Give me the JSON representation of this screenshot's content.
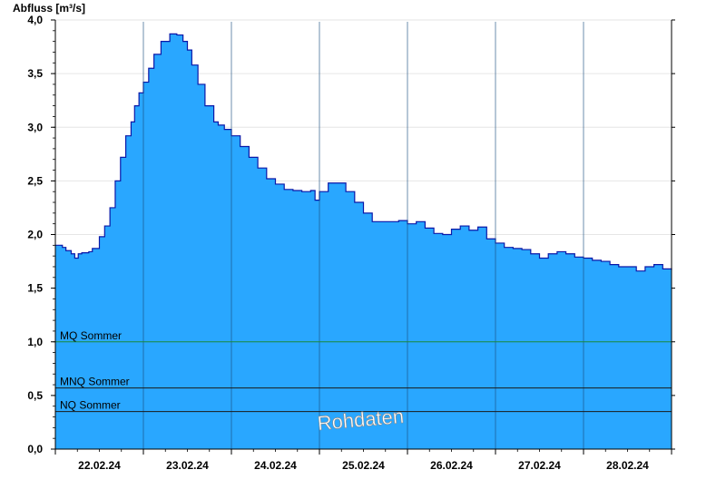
{
  "chart_data": {
    "type": "area",
    "title": "Abfluss [m³/s]",
    "xlabel": "",
    "ylabel": "Abfluss [m³/s]",
    "ylim": [
      0,
      4.0
    ],
    "yticks": [
      "0,0",
      "0,5",
      "1,0",
      "1,5",
      "2,0",
      "2,5",
      "3,0",
      "3,5",
      "4,0"
    ],
    "ytick_values": [
      0,
      0.5,
      1.0,
      1.5,
      2.0,
      2.5,
      3.0,
      3.5,
      4.0
    ],
    "x_days": [
      "22.02.24",
      "23.02.24",
      "24.02.24",
      "25.02.24",
      "26.02.24",
      "27.02.24",
      "28.02.24"
    ],
    "xlim_days": [
      0,
      7
    ],
    "series": [
      {
        "color": "#29a7ff",
        "line_color": "#0a18a8",
        "x": [
          0,
          0.08,
          0.12,
          0.18,
          0.22,
          0.26,
          0.3,
          0.38,
          0.42,
          0.5,
          0.56,
          0.62,
          0.68,
          0.74,
          0.8,
          0.86,
          0.9,
          0.95,
          1.0,
          1.06,
          1.12,
          1.2,
          1.3,
          1.38,
          1.45,
          1.5,
          1.55,
          1.62,
          1.7,
          1.8,
          1.85,
          1.92,
          2.0,
          2.1,
          2.2,
          2.3,
          2.4,
          2.5,
          2.6,
          2.7,
          2.8,
          2.9,
          2.95,
          3.0,
          3.1,
          3.2,
          3.3,
          3.4,
          3.5,
          3.6,
          3.7,
          3.8,
          3.9,
          4.0,
          4.1,
          4.2,
          4.3,
          4.4,
          4.5,
          4.6,
          4.7,
          4.8,
          4.9,
          5.0,
          5.1,
          5.2,
          5.3,
          5.4,
          5.5,
          5.6,
          5.7,
          5.8,
          5.9,
          6.0,
          6.1,
          6.2,
          6.3,
          6.4,
          6.5,
          6.6,
          6.7,
          6.8,
          6.9,
          7.0
        ],
        "y": [
          1.9,
          1.88,
          1.85,
          1.82,
          1.78,
          1.82,
          1.83,
          1.84,
          1.87,
          1.98,
          2.08,
          2.25,
          2.5,
          2.72,
          2.92,
          3.05,
          3.2,
          3.32,
          3.42,
          3.55,
          3.68,
          3.8,
          3.87,
          3.86,
          3.8,
          3.72,
          3.58,
          3.4,
          3.2,
          3.05,
          3.02,
          2.98,
          2.92,
          2.82,
          2.72,
          2.62,
          2.52,
          2.47,
          2.42,
          2.41,
          2.4,
          2.41,
          2.32,
          2.4,
          2.48,
          2.48,
          2.4,
          2.3,
          2.2,
          2.12,
          2.12,
          2.12,
          2.13,
          2.1,
          2.12,
          2.06,
          2.01,
          2.0,
          2.05,
          2.08,
          2.04,
          2.07,
          1.96,
          1.92,
          1.88,
          1.87,
          1.86,
          1.82,
          1.78,
          1.82,
          1.84,
          1.82,
          1.79,
          1.78,
          1.76,
          1.75,
          1.72,
          1.7,
          1.7,
          1.66,
          1.7,
          1.72,
          1.68,
          1.67
        ]
      }
    ],
    "reference_lines": [
      {
        "label": "MQ Sommer",
        "value": 1.0,
        "color": "#1a8a3a"
      },
      {
        "label": "MNQ Sommer",
        "value": 0.57,
        "color": "#1a1a1a"
      },
      {
        "label": "NQ Sommer",
        "value": 0.35,
        "color": "#1a1a1a"
      }
    ],
    "watermark": "Rohdaten",
    "grid": true,
    "legend": "none"
  }
}
